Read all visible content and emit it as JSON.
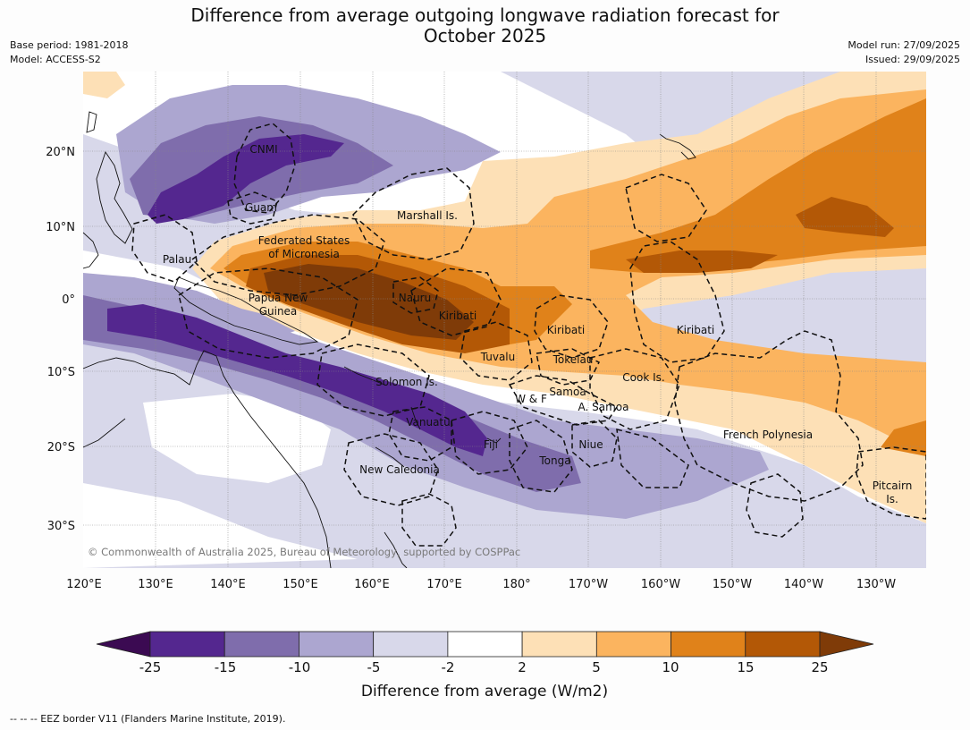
{
  "title": {
    "line1": "Difference from average outgoing longwave radiation forecast for",
    "line2": "October 2025"
  },
  "meta": {
    "base_period": "Base period: 1981-2018",
    "model": "Model: ACCESS-S2",
    "model_run": "Model run: 27/09/2025",
    "issued": "Issued: 29/09/2025"
  },
  "map": {
    "lon_labels": [
      "120°E",
      "130°E",
      "140°E",
      "150°E",
      "160°E",
      "170°E",
      "180°",
      "170°W",
      "160°W",
      "150°W",
      "140°W",
      "130°W"
    ],
    "lat_labels": [
      "20°N",
      "10°N",
      "0°",
      "10°S",
      "20°S",
      "30°S"
    ],
    "places": {
      "cnmi": "CNMI",
      "guam": "Guam",
      "marshall": "Marshall Is.",
      "fsm_1": "Federated States",
      "fsm_2": "of Micronesia",
      "palau": "Palau",
      "png_1": "Papua New",
      "png_2": "Guinea",
      "nauru": "Nauru",
      "kiribati_w": "Kiribati",
      "kiribati_c": "Kiribati",
      "kiribati_e": "Kiribati",
      "tuvalu": "Tuvalu",
      "tokelau": "Tokelau",
      "cook": "Cook Is.",
      "solomon": "Solomon Is.",
      "wf": "W & F",
      "samoa": "Samoa",
      "asamoa": "A. Samoa",
      "vanuatu": "Vanuatu",
      "fiji": "Fiji",
      "niue": "Niue",
      "tonga": "Tonga",
      "french_poly": "French Polynesia",
      "new_caledonia": "New Caledonia",
      "pitcairn_1": "Pitcairn",
      "pitcairn_2": "Is."
    },
    "copyright": "© Commonwealth of Australia 2025, Bureau of Meteorology, supported by COSPPac"
  },
  "colorbar": {
    "ticks": [
      "-25",
      "-15",
      "-10",
      "-5",
      "-2",
      "2",
      "5",
      "10",
      "15",
      "25"
    ],
    "colors": [
      "#3b0a52",
      "#54278f",
      "#7f6dac",
      "#aca6d0",
      "#d8d8ea",
      "#ffffff",
      "#fde0b6",
      "#fbb45f",
      "#e0821a",
      "#b35806",
      "#7f3b08"
    ],
    "label": "Difference from average (W/m2)"
  },
  "footer": "--  --  -- EEZ border V11 (Flanders Marine Institute, 2019)."
}
